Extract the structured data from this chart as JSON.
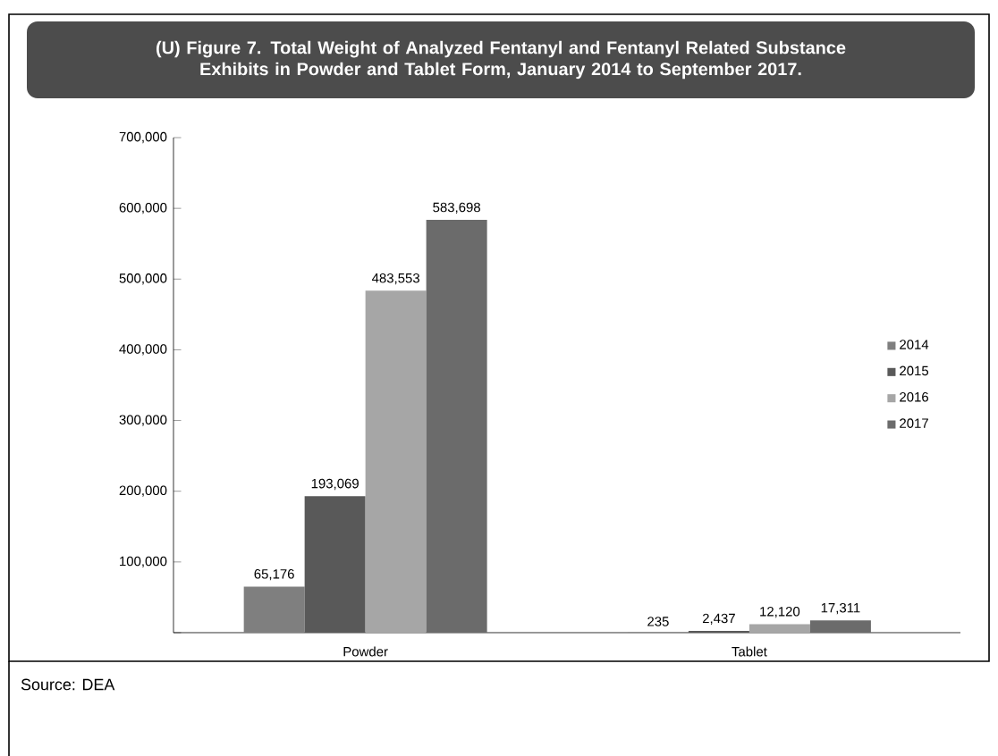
{
  "chart_data": {
    "type": "bar",
    "title": "(U) Figure 7. Total Weight of Analyzed Fentanyl and Fentanyl Related Substance Exhibits in Powder and Tablet Form, January 2014 to September 2017.",
    "categories": [
      "Powder",
      "Tablet"
    ],
    "series": [
      {
        "name": "2014",
        "color": "#7f7f7f",
        "values": [
          65176,
          235
        ],
        "value_labels": [
          "65,176",
          "235"
        ]
      },
      {
        "name": "2015",
        "color": "#595959",
        "values": [
          193069,
          2437
        ],
        "value_labels": [
          "193,069",
          "2,437"
        ]
      },
      {
        "name": "2016",
        "color": "#a6a6a6",
        "values": [
          483553,
          12120
        ],
        "value_labels": [
          "483,553",
          "12,120"
        ]
      },
      {
        "name": "2017",
        "color": "#6b6b6b",
        "values": [
          583698,
          17311
        ],
        "value_labels": [
          "583,698",
          "17,311"
        ]
      }
    ],
    "ylim": [
      0,
      700000
    ],
    "yticks": [
      {
        "value": 0,
        "label": null
      },
      "100,000",
      "200,000",
      "300,000",
      "400,000",
      "500,000",
      "600,000",
      "700,000"
    ],
    "legend": "right",
    "grid": false,
    "annotations": [
      "Source:  DEA"
    ]
  }
}
